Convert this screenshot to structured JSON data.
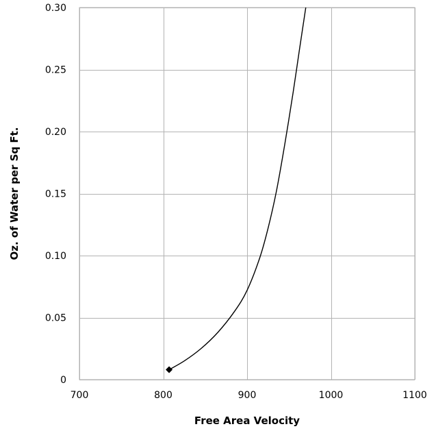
{
  "chart_data": {
    "type": "line",
    "title": "",
    "xlabel": "Free Area Velocity",
    "ylabel": "Oz. of Water per Sq Ft.",
    "xlim": [
      700,
      1100
    ],
    "ylim": [
      0,
      0.3
    ],
    "grid": true,
    "x_ticks": [
      {
        "value": 700,
        "label": "700"
      },
      {
        "value": 800,
        "label": "800"
      },
      {
        "value": 900,
        "label": "900"
      },
      {
        "value": 1000,
        "label": "1000"
      },
      {
        "value": 1100,
        "label": "1100"
      }
    ],
    "y_ticks": [
      {
        "value": 0,
        "label": "0"
      },
      {
        "value": 0.05,
        "label": "0.05"
      },
      {
        "value": 0.1,
        "label": "0.10"
      },
      {
        "value": 0.15,
        "label": "0.15"
      },
      {
        "value": 0.2,
        "label": "0.20"
      },
      {
        "value": 0.25,
        "label": "0.25"
      },
      {
        "value": 0.3,
        "label": "0.30"
      }
    ],
    "series": [
      {
        "color": "#000000",
        "x": [
          807,
          825,
          845,
          865,
          885,
          900,
          915,
          925,
          935,
          945,
          955,
          962,
          970
        ],
        "y": [
          0.008,
          0.015,
          0.025,
          0.038,
          0.055,
          0.072,
          0.098,
          0.122,
          0.152,
          0.19,
          0.232,
          0.264,
          0.3
        ]
      }
    ],
    "markers": [
      {
        "x": 807,
        "y": 0.008,
        "shape": "diamond",
        "color": "#000000"
      }
    ]
  }
}
